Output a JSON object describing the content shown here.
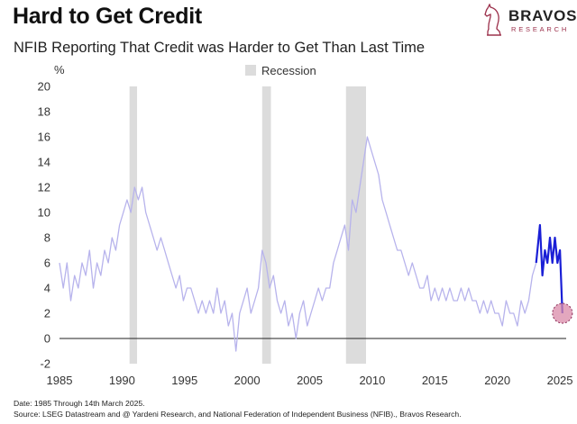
{
  "header": {
    "title": "Hard to Get Credit",
    "subtitle": "NFIB Reporting That Credit was Harder to Get Than Last Time"
  },
  "logo": {
    "name": "BRAVOS",
    "sub": "RESEARCH"
  },
  "footer": {
    "date_note": "Date: 1985 Through 14th March 2025.",
    "source_note": "Source: LSEG Datastream and @ Yardeni Research, and National Federation of Independent Business (NFIB)., Bravos Research."
  },
  "colors": {
    "history_line": "#b7b3ec",
    "recent_line": "#1a1fd6",
    "recession": "#dcdcdc",
    "highlight_marker": "#d98aa8",
    "logo_accent": "#9b2f4a"
  },
  "chart_data": {
    "type": "line",
    "ylabel": "%",
    "ylim": [
      -2,
      20
    ],
    "xlim": [
      1985,
      2025.5
    ],
    "y_ticks": [
      20,
      18,
      16,
      14,
      12,
      10,
      8,
      6,
      4,
      2,
      0,
      -2
    ],
    "x_ticks": [
      1985,
      1990,
      1995,
      2000,
      2005,
      2010,
      2015,
      2020,
      2025
    ],
    "legend": {
      "label": "Recession",
      "placement": "top-center"
    },
    "recessions": [
      {
        "start": 1990.6,
        "end": 1991.2
      },
      {
        "start": 2001.2,
        "end": 2001.9
      },
      {
        "start": 2007.9,
        "end": 2009.5
      }
    ],
    "series": [
      {
        "x": [
          1985.0,
          1985.3,
          1985.6,
          1985.9,
          1986.2,
          1986.5,
          1986.8,
          1987.1,
          1987.4,
          1987.7,
          1988.0,
          1988.3,
          1988.6,
          1988.9,
          1989.2,
          1989.5,
          1989.8,
          1990.1,
          1990.4,
          1990.7,
          1991.0,
          1991.3,
          1991.6,
          1991.9,
          1992.2,
          1992.5,
          1992.8,
          1993.1,
          1993.4,
          1993.7,
          1994.0,
          1994.3,
          1994.6,
          1994.9,
          1995.2,
          1995.5,
          1995.8,
          1996.1,
          1996.4,
          1996.7,
          1997.0,
          1997.3,
          1997.6,
          1997.9,
          1998.2,
          1998.5,
          1998.8,
          1999.1,
          1999.4,
          1999.7,
          2000.0,
          2000.3,
          2000.6,
          2000.9,
          2001.2,
          2001.5,
          2001.8,
          2002.1,
          2002.4,
          2002.7,
          2003.0,
          2003.3,
          2003.6,
          2003.9,
          2004.2,
          2004.5,
          2004.8,
          2005.1,
          2005.4,
          2005.7,
          2006.0,
          2006.3,
          2006.6,
          2006.9,
          2007.2,
          2007.5,
          2007.8,
          2008.1,
          2008.4,
          2008.7,
          2009.0,
          2009.3,
          2009.6,
          2009.9,
          2010.2,
          2010.5,
          2010.8,
          2011.1,
          2011.4,
          2011.7,
          2012.0,
          2012.3,
          2012.6,
          2012.9,
          2013.2,
          2013.5,
          2013.8,
          2014.1,
          2014.4,
          2014.7,
          2015.0,
          2015.3,
          2015.6,
          2015.9,
          2016.2,
          2016.5,
          2016.8,
          2017.1,
          2017.4,
          2017.7,
          2018.0,
          2018.3,
          2018.6,
          2018.9,
          2019.2,
          2019.5,
          2019.8,
          2020.1,
          2020.4,
          2020.7,
          2021.0,
          2021.3,
          2021.6,
          2021.9,
          2022.2,
          2022.5,
          2022.8,
          2023.1
        ],
        "values": [
          6,
          4,
          6,
          3,
          5,
          4,
          6,
          5,
          7,
          4,
          6,
          5,
          7,
          6,
          8,
          7,
          9,
          10,
          11,
          10,
          12,
          11,
          12,
          10,
          9,
          8,
          7,
          8,
          7,
          6,
          5,
          4,
          5,
          3,
          4,
          4,
          3,
          2,
          3,
          2,
          3,
          2,
          4,
          2,
          3,
          1,
          2,
          -1,
          2,
          3,
          4,
          2,
          3,
          4,
          7,
          6,
          4,
          5,
          3,
          2,
          3,
          1,
          2,
          0,
          2,
          3,
          1,
          2,
          3,
          4,
          3,
          4,
          4,
          6,
          7,
          8,
          9,
          7,
          11,
          10,
          12,
          14,
          16,
          15,
          14,
          13,
          11,
          10,
          9,
          8,
          7,
          7,
          6,
          5,
          6,
          5,
          4,
          4,
          5,
          3,
          4,
          3,
          4,
          3,
          4,
          3,
          3,
          4,
          3,
          4,
          3,
          3,
          2,
          3,
          2,
          3,
          2,
          2,
          1,
          3,
          2,
          2,
          1,
          3,
          2,
          3,
          5,
          6
        ]
      },
      {
        "x": [
          2023.1,
          2023.4,
          2023.6,
          2023.8,
          2024.0,
          2024.2,
          2024.4,
          2024.6,
          2024.8,
          2025.0,
          2025.2
        ],
        "values": [
          6,
          9,
          5,
          7,
          6,
          8,
          6,
          8,
          6,
          7,
          2
        ]
      }
    ],
    "annotation": {
      "x": 2025.2,
      "y": 2,
      "shape": "circle"
    }
  }
}
